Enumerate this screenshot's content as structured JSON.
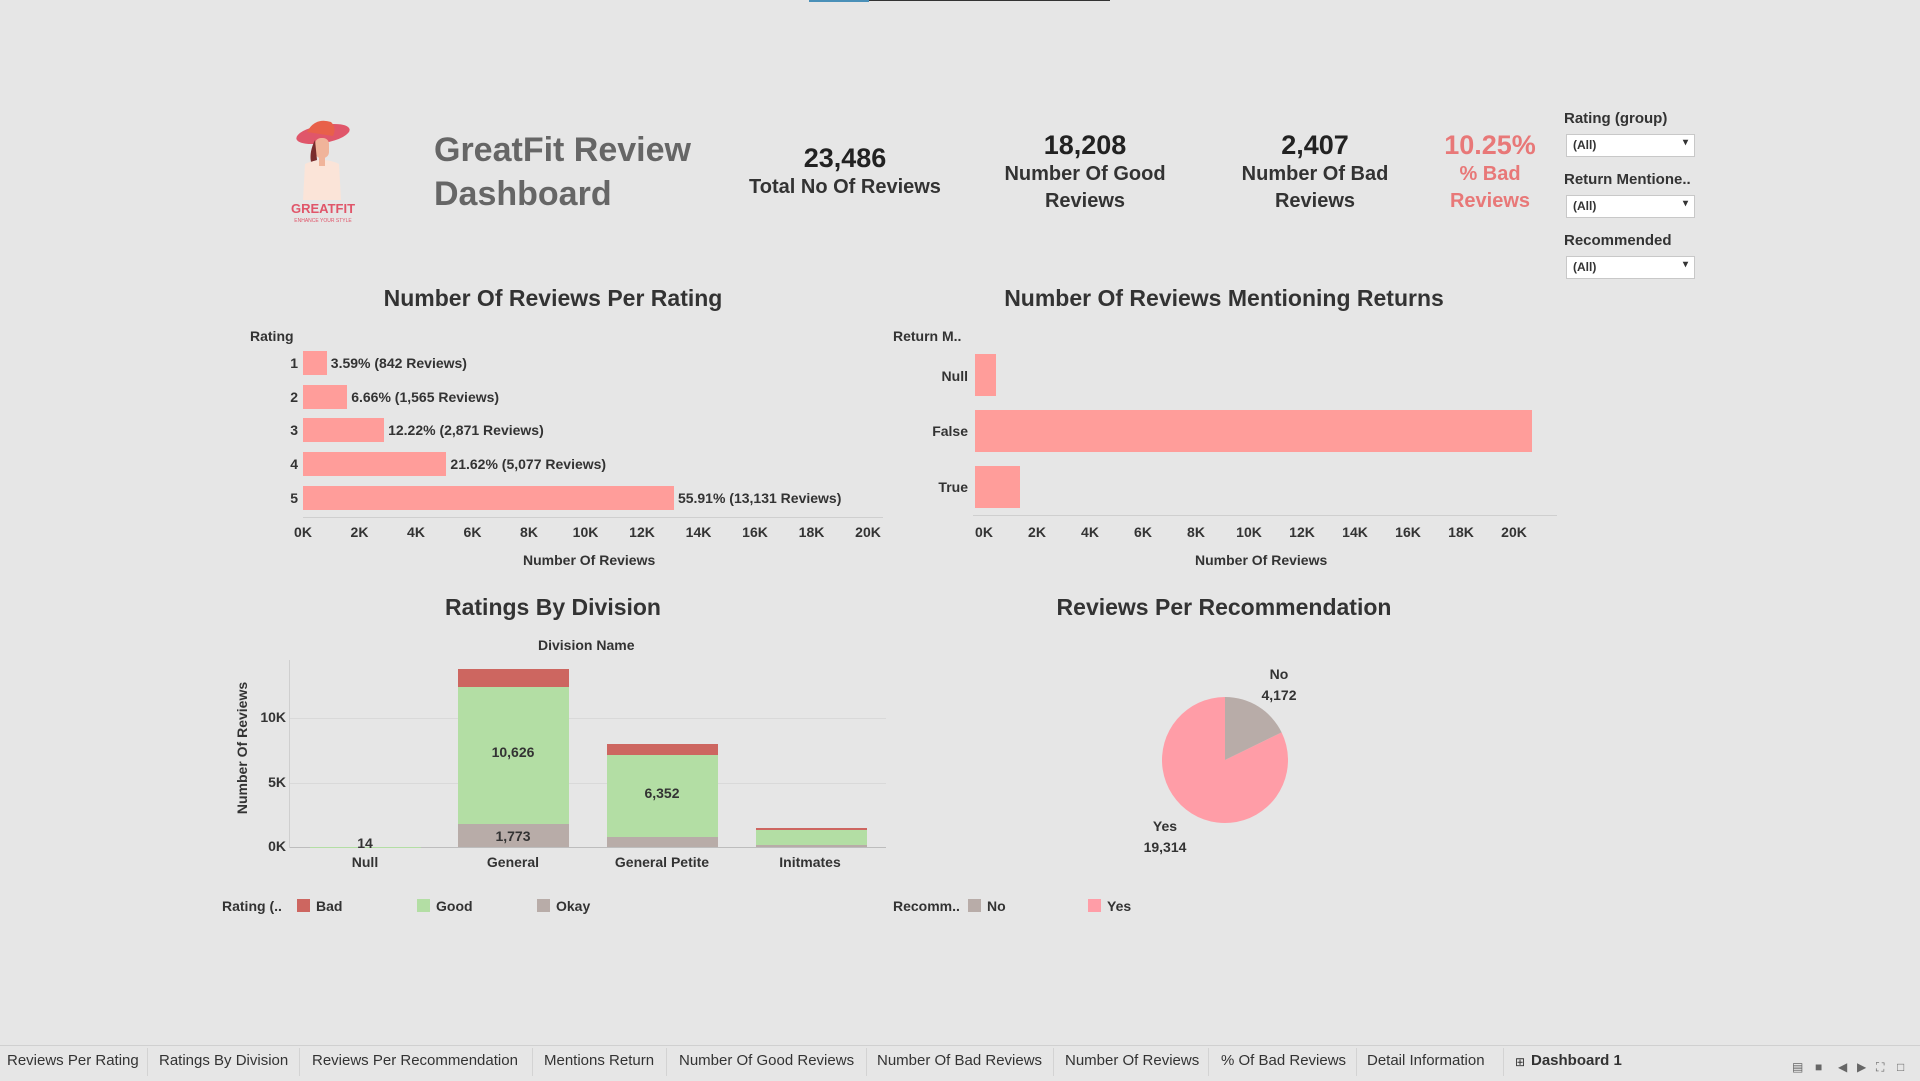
{
  "header": {
    "logo_text": "GREATFIT",
    "logo_tagline": "ENHANCE YOUR STYLE",
    "title_line1": "GreatFit Review",
    "title_line2": "Dashboard"
  },
  "kpis": {
    "total": {
      "value": "23,486",
      "label": "Total No Of Reviews"
    },
    "good": {
      "value": "18,208",
      "label_line1": "Number Of Good",
      "label_line2": "Reviews"
    },
    "bad": {
      "value": "2,407",
      "label_line1": "Number Of Bad",
      "label_line2": "Reviews"
    },
    "pct_bad": {
      "value": "10.25%",
      "label_line1": "% Bad",
      "label_line2": "Reviews"
    }
  },
  "filters": [
    {
      "label": "Rating (group)",
      "value": "(All)"
    },
    {
      "label": "Return Mentione..",
      "value": "(All)"
    },
    {
      "label": "Recommended",
      "value": "(All)"
    }
  ],
  "colors": {
    "bar": "#ff9d9a",
    "bad": "#cd6660",
    "good": "#b3dea4",
    "okay": "#b8aca8",
    "rec_no": "#b8aca8",
    "rec_yes": "#ff9da7",
    "kpi_red": "#e87878"
  },
  "chart_data": [
    {
      "type": "bar",
      "title": "Number Of Reviews Per Rating",
      "orientation": "horizontal",
      "ylabel": "Rating",
      "xlabel": "Number Of Reviews",
      "categories": [
        "1",
        "2",
        "3",
        "4",
        "5"
      ],
      "values": [
        842,
        1565,
        2871,
        5077,
        13131
      ],
      "data_labels": [
        "3.59% (842 Reviews)",
        "6.66% (1,565 Reviews)",
        "12.22% (2,871 Reviews)",
        "21.62% (5,077 Reviews)",
        "55.91% (13,131 Reviews)"
      ],
      "xticks": [
        "0K",
        "2K",
        "4K",
        "6K",
        "8K",
        "10K",
        "12K",
        "14K",
        "16K",
        "18K",
        "20K"
      ],
      "xlim": [
        0,
        20000
      ]
    },
    {
      "type": "bar",
      "title": "Number Of Reviews Mentioning Returns",
      "orientation": "horizontal",
      "ylabel": "Return M..",
      "xlabel": "Number Of Reviews",
      "categories": [
        "Null",
        "False",
        "True"
      ],
      "values": [
        800,
        21000,
        1700
      ],
      "xticks": [
        "0K",
        "2K",
        "4K",
        "6K",
        "8K",
        "10K",
        "12K",
        "14K",
        "16K",
        "18K",
        "20K"
      ],
      "xlim": [
        0,
        22000
      ]
    },
    {
      "type": "bar",
      "stacked": true,
      "title": "Ratings By Division",
      "xlabel": "Division Name",
      "ylabel": "Number Of Reviews",
      "categories": [
        "Null",
        "General",
        "General Petite",
        "Intimates"
      ],
      "category_labels": [
        "Null",
        "General",
        "General Petite",
        "Initmates"
      ],
      "series": [
        {
          "name": "Okay",
          "values": [
            0,
            1773,
            800,
            120
          ]
        },
        {
          "name": "Good",
          "values": [
            14,
            10626,
            6352,
            1200
          ]
        },
        {
          "name": "Bad",
          "values": [
            0,
            1400,
            800,
            150
          ]
        }
      ],
      "data_labels": {
        "Null": "14",
        "General_good": "10,626",
        "General_okay": "1,773",
        "GeneralPetite_good": "6,352"
      },
      "yticks": [
        "0K",
        "5K",
        "10K"
      ],
      "ylim": [
        0,
        14500
      ],
      "legend_title": "Rating (..",
      "legend": [
        "Bad",
        "Good",
        "Okay"
      ]
    },
    {
      "type": "pie",
      "title": "Reviews Per Recommendation",
      "categories": [
        "No",
        "Yes"
      ],
      "values": [
        4172,
        19314
      ],
      "value_labels": [
        "4,172",
        "19,314"
      ],
      "legend_title": "Recomm..",
      "legend": [
        "No",
        "Yes"
      ]
    }
  ],
  "tabs": [
    "Reviews Per Rating",
    "Ratings By Division",
    "Reviews Per Recommendation",
    "Mentions Return",
    "Number Of Good Reviews",
    "Number Of Bad Reviews",
    "Number Of Reviews",
    "% Of Bad Reviews",
    "Detail Information",
    "Dashboard 1"
  ]
}
